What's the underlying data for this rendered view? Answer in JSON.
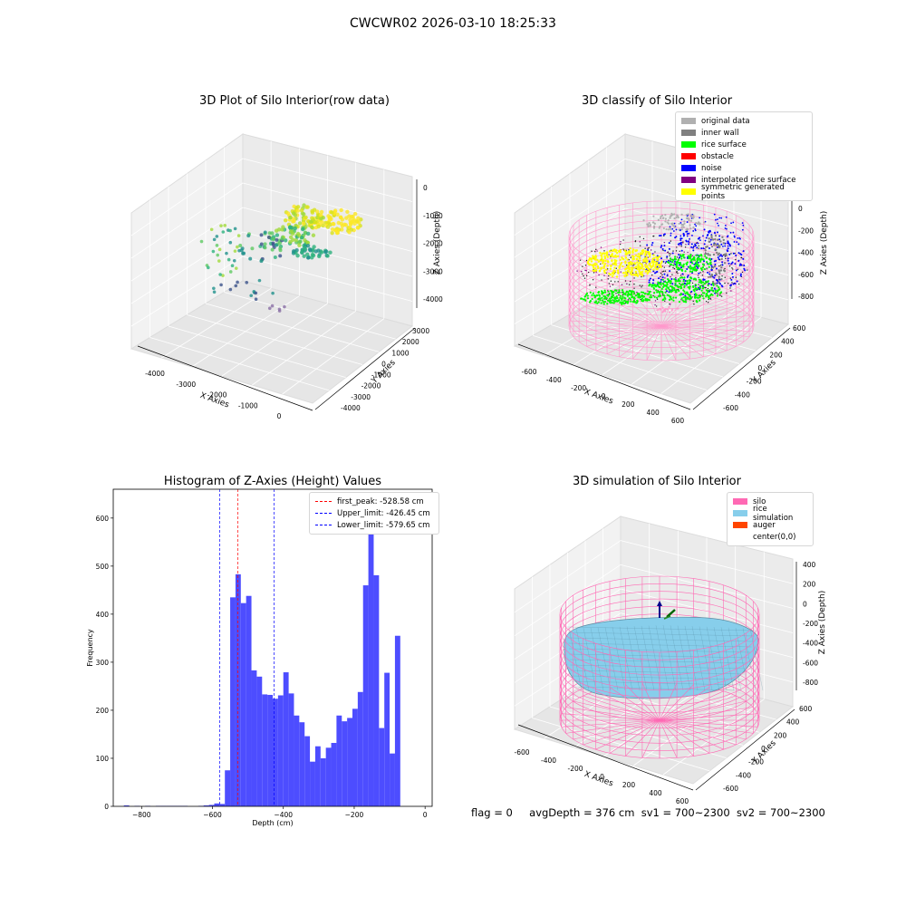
{
  "figure_title": "CWCWR02 2026-03-10 18:25:33",
  "footer": {
    "flag": "flag = 0",
    "avg_depth": "avgDepth = 376 cm",
    "sv1": "sv1 = 700~2300",
    "sv2": "sv2 = 700~2300"
  },
  "chart_data": [
    {
      "type": "scatter",
      "title": "3D Plot of Silo Interior(row data)",
      "xlabel": "X Axies",
      "ylabel": "Y Axies",
      "zlabel": "Z Axies (Depth)",
      "xticks": [
        "-4000",
        "-3000",
        "-2000",
        "-1000",
        "0"
      ],
      "yticks": [
        "3000",
        "2000",
        "1000",
        "0",
        "-1000",
        "-2000",
        "-3000",
        "-4000"
      ],
      "zticks": [
        "0",
        "-1000",
        "-2000",
        "-3000",
        "-4000"
      ],
      "xlim": [
        -4500,
        500
      ],
      "ylim": [
        -4500,
        3500
      ],
      "zlim": [
        -4500,
        0
      ],
      "colormap": "viridis",
      "grid": true
    },
    {
      "type": "scatter",
      "title": "3D classify of Silo Interior",
      "xlabel": "X Axies",
      "ylabel": "Y Axies",
      "zlabel": "Z Axies (Depth)",
      "xticks": [
        "-600",
        "-400",
        "-200",
        "0",
        "200",
        "400",
        "600"
      ],
      "yticks": [
        "600",
        "400",
        "200",
        "0",
        "-200",
        "-400",
        "-600"
      ],
      "zticks": [
        "200",
        "0",
        "-200",
        "-400",
        "-600",
        "-800"
      ],
      "legend_position": "top-right",
      "legend": [
        {
          "name": "original data",
          "color": "#b0b0b0"
        },
        {
          "name": "inner wall",
          "color": "#808080"
        },
        {
          "name": "rice surface",
          "color": "#00ff00"
        },
        {
          "name": "obstacle",
          "color": "#ff0000"
        },
        {
          "name": "noise",
          "color": "#0000ff"
        },
        {
          "name": "interpolated rice surface",
          "color": "#800080"
        },
        {
          "name": "symmetric generated points",
          "color": "#ffff00"
        }
      ],
      "grid": true
    },
    {
      "type": "bar",
      "title": "Histogram of Z-Axies (Height) Values",
      "xlabel": "Depth (cm)",
      "ylabel": "Frequency",
      "xlim": [
        -880,
        20
      ],
      "ylim": [
        0,
        660
      ],
      "xticks": [
        -800,
        -600,
        -400,
        -200,
        0
      ],
      "yticks": [
        0,
        100,
        200,
        300,
        400,
        500,
        600
      ],
      "bar_color": "#4d4dff",
      "bins": [
        {
          "x0": -850,
          "x1": -835,
          "value": 2
        },
        {
          "x0": -820,
          "x1": -805,
          "value": 1
        },
        {
          "x0": -790,
          "x1": -775,
          "value": 1
        },
        {
          "x0": -760,
          "x1": -745,
          "value": 1
        },
        {
          "x0": -745,
          "x1": -730,
          "value": 1
        },
        {
          "x0": -730,
          "x1": -715,
          "value": 1
        },
        {
          "x0": -715,
          "x1": -700,
          "value": 1
        },
        {
          "x0": -700,
          "x1": -685,
          "value": 1
        },
        {
          "x0": -685,
          "x1": -670,
          "value": 1
        },
        {
          "x0": -640,
          "x1": -625,
          "value": 1
        },
        {
          "x0": -625,
          "x1": -610,
          "value": 2
        },
        {
          "x0": -610,
          "x1": -595,
          "value": 3
        },
        {
          "x0": -595,
          "x1": -580,
          "value": 6
        },
        {
          "x0": -580,
          "x1": -565,
          "value": 5
        },
        {
          "x0": -565,
          "x1": -550,
          "value": 75
        },
        {
          "x0": -550,
          "x1": -535,
          "value": 435
        },
        {
          "x0": -535,
          "x1": -520,
          "value": 483
        },
        {
          "x0": -520,
          "x1": -505,
          "value": 423
        },
        {
          "x0": -505,
          "x1": -490,
          "value": 438
        },
        {
          "x0": -490,
          "x1": -475,
          "value": 283
        },
        {
          "x0": -475,
          "x1": -460,
          "value": 270
        },
        {
          "x0": -460,
          "x1": -445,
          "value": 233
        },
        {
          "x0": -445,
          "x1": -430,
          "value": 232
        },
        {
          "x0": -430,
          "x1": -415,
          "value": 224
        },
        {
          "x0": -415,
          "x1": -400,
          "value": 231
        },
        {
          "x0": -400,
          "x1": -385,
          "value": 279
        },
        {
          "x0": -385,
          "x1": -370,
          "value": 235
        },
        {
          "x0": -370,
          "x1": -355,
          "value": 189
        },
        {
          "x0": -355,
          "x1": -340,
          "value": 175
        },
        {
          "x0": -340,
          "x1": -325,
          "value": 146
        },
        {
          "x0": -325,
          "x1": -310,
          "value": 93
        },
        {
          "x0": -310,
          "x1": -295,
          "value": 125
        },
        {
          "x0": -295,
          "x1": -280,
          "value": 100
        },
        {
          "x0": -280,
          "x1": -265,
          "value": 122
        },
        {
          "x0": -265,
          "x1": -250,
          "value": 132
        },
        {
          "x0": -250,
          "x1": -235,
          "value": 189
        },
        {
          "x0": -235,
          "x1": -220,
          "value": 177
        },
        {
          "x0": -220,
          "x1": -205,
          "value": 184
        },
        {
          "x0": -205,
          "x1": -190,
          "value": 203
        },
        {
          "x0": -190,
          "x1": -175,
          "value": 238
        },
        {
          "x0": -175,
          "x1": -160,
          "value": 460
        },
        {
          "x0": -160,
          "x1": -145,
          "value": 622
        },
        {
          "x0": -145,
          "x1": -130,
          "value": 481
        },
        {
          "x0": -130,
          "x1": -115,
          "value": 163
        },
        {
          "x0": -115,
          "x1": -100,
          "value": 278
        },
        {
          "x0": -100,
          "x1": -85,
          "value": 110
        },
        {
          "x0": -85,
          "x1": -70,
          "value": 355
        }
      ],
      "vlines": [
        {
          "label": "first_peak: -528.58 cm",
          "x": -528.58,
          "color": "#ff0000"
        },
        {
          "label": "Upper_limit: -426.45 cm",
          "x": -426.45,
          "color": "#0000ff"
        },
        {
          "label": "Lower_limit: -579.65 cm",
          "x": -579.65,
          "color": "#0000ff"
        }
      ],
      "legend_position": "top-right"
    },
    {
      "type": "surface",
      "title": "3D simulation of Silo Interior",
      "xlabel": "X Axies",
      "ylabel": "Y Axies",
      "zlabel": "Z Axies (Depth)",
      "xticks": [
        "-600",
        "-400",
        "-200",
        "0",
        "200",
        "400",
        "600"
      ],
      "yticks": [
        "600",
        "400",
        "200",
        "0",
        "-200",
        "-400",
        "-600"
      ],
      "zticks": [
        "400",
        "200",
        "0",
        "-200",
        "-400",
        "-600",
        "-800"
      ],
      "legend_position": "top-right",
      "legend": [
        {
          "name": "silo",
          "color": "#ff69b4"
        },
        {
          "name": "rice simulation",
          "color": "#87ceeb"
        },
        {
          "name": "auger",
          "color": "#ff4500"
        },
        {
          "name": "center(0,0)",
          "color": ""
        }
      ],
      "grid": true
    }
  ]
}
